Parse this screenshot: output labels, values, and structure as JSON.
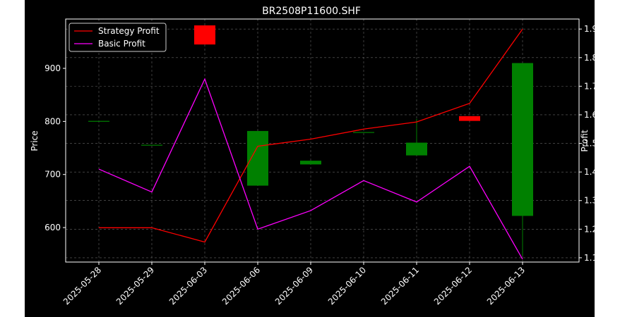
{
  "chart_data": {
    "type": "candlestick+line",
    "title": "BR2508P11600.SHF",
    "xlabel": "",
    "ylabel_left": "Price",
    "ylabel_right": "Profit",
    "ylim_left": [
      535,
      993
    ],
    "ylim_right": [
      1.085,
      1.935
    ],
    "y_ticks_left": [
      600,
      700,
      800,
      900
    ],
    "y_ticks_right": [
      1.1,
      1.2,
      1.3,
      1.4,
      1.5,
      1.6,
      1.7,
      1.8,
      1.9
    ],
    "grid": true,
    "legend_position": "top-left",
    "categories": [
      "2025-05-28",
      "2025-05-29",
      "2025-06-03",
      "2025-06-06",
      "2025-06-09",
      "2025-06-10",
      "2025-06-11",
      "2025-06-12",
      "2025-06-13"
    ],
    "candles": [
      {
        "open": 801,
        "high": 801,
        "low": 801,
        "close": 801
      },
      {
        "open": 756,
        "high": 756,
        "low": 756,
        "close": 756
      },
      {
        "open": 981,
        "high": 981,
        "low": 945,
        "close": 945
      },
      {
        "open": 679,
        "high": 782,
        "low": 679,
        "close": 782
      },
      {
        "open": 719,
        "high": 726,
        "low": 719,
        "close": 726
      },
      {
        "open": 780,
        "high": 780,
        "low": 780,
        "close": 780
      },
      {
        "open": 736,
        "high": 805,
        "low": 736,
        "close": 760
      },
      {
        "open": 810,
        "high": 810,
        "low": 801,
        "close": 801
      },
      {
        "open": 622,
        "high": 910,
        "low": 547,
        "close": 910
      }
    ],
    "series": [
      {
        "name": "Strategy Profit",
        "color": "#ff0000",
        "axis": "right",
        "values": [
          1.205,
          1.205,
          1.155,
          1.49,
          1.515,
          1.55,
          1.575,
          1.64,
          1.9
        ]
      },
      {
        "name": "Basic Profit",
        "color": "#ff00ff",
        "axis": "right",
        "values": [
          1.41,
          1.33,
          1.725,
          1.2,
          1.265,
          1.37,
          1.295,
          1.42,
          1.095
        ]
      }
    ],
    "colors": {
      "up": "#008000",
      "down": "#ff0000",
      "background": "#000000",
      "grid": "#808080",
      "text": "#ffffff"
    }
  }
}
